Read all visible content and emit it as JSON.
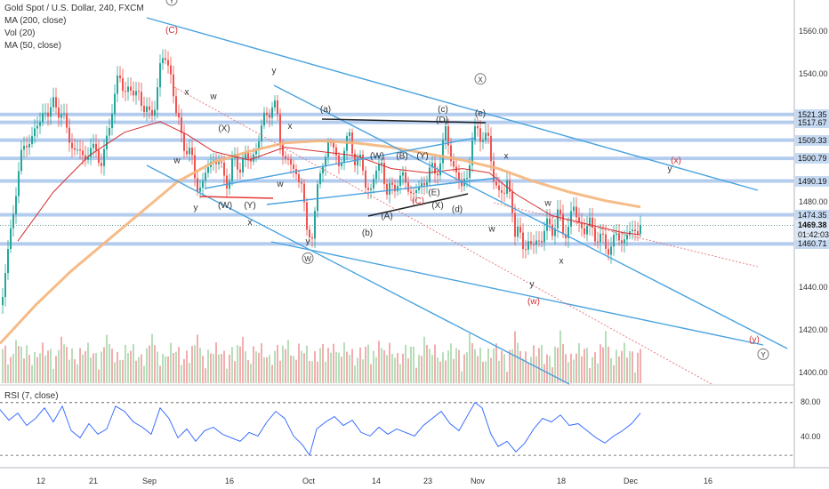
{
  "chart_data": {
    "type": "candlestick",
    "title": "Gold Spot / U.S. Dollar, 240, FXCM",
    "legend": [
      "MA (200, close)",
      "Vol (20)",
      "MA (50, close)"
    ],
    "ylim": [
      1395,
      1575
    ],
    "yticks": [
      "1560.00",
      "1540.00",
      "1520.00",
      "1500.00",
      "1480.00",
      "1460.00",
      "1440.00",
      "1420.00",
      "1400.00"
    ],
    "xticks": [
      "12",
      "21",
      "Sep",
      "16",
      "Oct",
      "14",
      "23",
      "Nov",
      "18",
      "Dec",
      "16"
    ],
    "price_levels": [
      {
        "label": "1521.35",
        "value": 1521.35
      },
      {
        "label": "1517.67",
        "value": 1517.67
      },
      {
        "label": "1509.33",
        "value": 1509.33
      },
      {
        "label": "1500.79",
        "value": 1500.79
      },
      {
        "label": "1490.19",
        "value": 1490.19
      },
      {
        "label": "1474.35",
        "value": 1474.35
      },
      {
        "label": "1460.71",
        "value": 1460.71
      }
    ],
    "current_price": {
      "label": "1469.38",
      "value": 1469.38
    },
    "countdown": {
      "label": "01:42:03",
      "value": 1464.9
    },
    "price_path": [
      [
        1,
        1432
      ],
      [
        6,
        1450
      ],
      [
        12,
        1470
      ],
      [
        18,
        1490
      ],
      [
        24,
        1502
      ],
      [
        30,
        1512
      ],
      [
        36,
        1508
      ],
      [
        42,
        1518
      ],
      [
        48,
        1524
      ],
      [
        54,
        1519
      ],
      [
        60,
        1530
      ],
      [
        66,
        1522
      ],
      [
        72,
        1516
      ],
      [
        78,
        1512
      ],
      [
        84,
        1500
      ],
      [
        90,
        1506
      ],
      [
        96,
        1500
      ],
      [
        102,
        1506
      ],
      [
        108,
        1503
      ],
      [
        114,
        1500
      ],
      [
        120,
        1508
      ],
      [
        126,
        1530
      ],
      [
        132,
        1538
      ],
      [
        138,
        1532
      ],
      [
        144,
        1536
      ],
      [
        150,
        1528
      ],
      [
        156,
        1532
      ],
      [
        162,
        1524
      ],
      [
        168,
        1518
      ],
      [
        174,
        1530
      ],
      [
        180,
        1545
      ],
      [
        186,
        1548
      ],
      [
        192,
        1540
      ],
      [
        196,
        1522
      ],
      [
        202,
        1514
      ],
      [
        208,
        1506
      ],
      [
        214,
        1500
      ],
      [
        220,
        1490
      ],
      [
        226,
        1486
      ],
      [
        232,
        1496
      ],
      [
        238,
        1502
      ],
      [
        244,
        1498
      ],
      [
        250,
        1494
      ],
      [
        256,
        1490
      ],
      [
        262,
        1500
      ],
      [
        268,
        1497
      ],
      [
        274,
        1502
      ],
      [
        280,
        1498
      ],
      [
        286,
        1506
      ],
      [
        292,
        1512
      ],
      [
        298,
        1522
      ],
      [
        304,
        1526
      ],
      [
        310,
        1522
      ],
      [
        314,
        1510
      ],
      [
        320,
        1500
      ],
      [
        326,
        1497
      ],
      [
        332,
        1494
      ],
      [
        338,
        1490
      ],
      [
        344,
        1464
      ],
      [
        350,
        1468
      ],
      [
        356,
        1484
      ],
      [
        362,
        1500
      ],
      [
        368,
        1508
      ],
      [
        374,
        1505
      ],
      [
        380,
        1498
      ],
      [
        386,
        1505
      ],
      [
        392,
        1510
      ],
      [
        398,
        1502
      ],
      [
        404,
        1498
      ],
      [
        410,
        1490
      ],
      [
        416,
        1486
      ],
      [
        422,
        1494
      ],
      [
        428,
        1500
      ],
      [
        434,
        1484
      ],
      [
        440,
        1486
      ],
      [
        446,
        1492
      ],
      [
        452,
        1490
      ],
      [
        458,
        1488
      ],
      [
        464,
        1484
      ],
      [
        470,
        1486
      ],
      [
        476,
        1490
      ],
      [
        482,
        1496
      ],
      [
        488,
        1492
      ],
      [
        494,
        1502
      ],
      [
        500,
        1512
      ],
      [
        506,
        1502
      ],
      [
        512,
        1494
      ],
      [
        518,
        1486
      ],
      [
        524,
        1494
      ],
      [
        530,
        1508
      ],
      [
        536,
        1514
      ],
      [
        542,
        1512
      ],
      [
        548,
        1508
      ],
      [
        554,
        1492
      ],
      [
        560,
        1486
      ],
      [
        566,
        1482
      ],
      [
        570,
        1492
      ],
      [
        574,
        1484
      ],
      [
        578,
        1462
      ],
      [
        584,
        1466
      ],
      [
        590,
        1460
      ],
      [
        596,
        1458
      ],
      [
        602,
        1464
      ],
      [
        608,
        1462
      ],
      [
        614,
        1470
      ],
      [
        620,
        1468
      ],
      [
        626,
        1474
      ],
      [
        632,
        1466
      ],
      [
        638,
        1470
      ],
      [
        644,
        1476
      ],
      [
        650,
        1472
      ],
      [
        656,
        1466
      ],
      [
        662,
        1470
      ],
      [
        668,
        1466
      ],
      [
        674,
        1462
      ],
      [
        680,
        1460
      ],
      [
        686,
        1460
      ],
      [
        692,
        1464
      ],
      [
        698,
        1462
      ],
      [
        704,
        1466
      ],
      [
        710,
        1464
      ],
      [
        716,
        1470
      ],
      [
        720,
        1472
      ]
    ],
    "ma50": [
      [
        20,
        1462
      ],
      [
        60,
        1485
      ],
      [
        100,
        1502
      ],
      [
        140,
        1513
      ],
      [
        180,
        1518
      ],
      [
        210,
        1512
      ],
      [
        240,
        1504
      ],
      [
        280,
        1500
      ],
      [
        320,
        1506
      ],
      [
        360,
        1504
      ],
      [
        400,
        1502
      ],
      [
        440,
        1496
      ],
      [
        480,
        1494
      ],
      [
        520,
        1496
      ],
      [
        550,
        1494
      ],
      [
        580,
        1484
      ],
      [
        620,
        1474
      ],
      [
        660,
        1470
      ],
      [
        700,
        1466
      ],
      [
        720,
        1465
      ]
    ],
    "ma200": [
      [
        0,
        1414
      ],
      [
        40,
        1432
      ],
      [
        80,
        1448
      ],
      [
        120,
        1462
      ],
      [
        160,
        1476
      ],
      [
        200,
        1490
      ],
      [
        240,
        1499
      ],
      [
        280,
        1504
      ],
      [
        320,
        1508
      ],
      [
        360,
        1509
      ],
      [
        400,
        1508
      ],
      [
        440,
        1506
      ],
      [
        480,
        1503
      ],
      [
        520,
        1500
      ],
      [
        560,
        1496
      ],
      [
        600,
        1490
      ],
      [
        640,
        1485
      ],
      [
        680,
        1481
      ],
      [
        720,
        1478
      ]
    ],
    "rsi": {
      "title": "RSI (7, close)",
      "ylim": [
        10,
        95
      ],
      "ticks": [
        "80.00",
        "40.00"
      ],
      "levels": [
        80,
        20
      ],
      "path": [
        [
          0,
          72
        ],
        [
          10,
          60
        ],
        [
          20,
          68
        ],
        [
          30,
          54
        ],
        [
          40,
          62
        ],
        [
          50,
          74
        ],
        [
          60,
          58
        ],
        [
          70,
          76
        ],
        [
          80,
          48
        ],
        [
          90,
          40
        ],
        [
          100,
          56
        ],
        [
          110,
          44
        ],
        [
          120,
          50
        ],
        [
          130,
          76
        ],
        [
          140,
          70
        ],
        [
          150,
          58
        ],
        [
          160,
          52
        ],
        [
          170,
          44
        ],
        [
          180,
          74
        ],
        [
          190,
          62
        ],
        [
          200,
          40
        ],
        [
          210,
          50
        ],
        [
          220,
          36
        ],
        [
          230,
          48
        ],
        [
          240,
          52
        ],
        [
          250,
          44
        ],
        [
          260,
          40
        ],
        [
          270,
          36
        ],
        [
          280,
          46
        ],
        [
          290,
          42
        ],
        [
          300,
          58
        ],
        [
          310,
          70
        ],
        [
          320,
          62
        ],
        [
          330,
          42
        ],
        [
          340,
          32
        ],
        [
          348,
          20
        ],
        [
          356,
          50
        ],
        [
          366,
          58
        ],
        [
          376,
          64
        ],
        [
          386,
          54
        ],
        [
          396,
          60
        ],
        [
          406,
          46
        ],
        [
          416,
          42
        ],
        [
          426,
          52
        ],
        [
          436,
          44
        ],
        [
          446,
          50
        ],
        [
          456,
          46
        ],
        [
          466,
          42
        ],
        [
          476,
          54
        ],
        [
          486,
          62
        ],
        [
          496,
          70
        ],
        [
          506,
          56
        ],
        [
          516,
          48
        ],
        [
          526,
          66
        ],
        [
          534,
          80
        ],
        [
          542,
          74
        ],
        [
          552,
          44
        ],
        [
          560,
          30
        ],
        [
          570,
          36
        ],
        [
          580,
          24
        ],
        [
          590,
          34
        ],
        [
          600,
          50
        ],
        [
          610,
          62
        ],
        [
          620,
          58
        ],
        [
          630,
          66
        ],
        [
          640,
          54
        ],
        [
          650,
          56
        ],
        [
          660,
          48
        ],
        [
          670,
          40
        ],
        [
          680,
          34
        ],
        [
          690,
          42
        ],
        [
          700,
          48
        ],
        [
          710,
          56
        ],
        [
          720,
          68
        ]
      ]
    },
    "volume_max": 100,
    "wave_labels": [
      {
        "text": "Y",
        "x": 193,
        "y": 1575,
        "circled": true
      },
      {
        "text": "(C)",
        "x": 193,
        "y": 1561
      },
      {
        "text": "x",
        "x": 210,
        "y": 1532
      },
      {
        "text": "w",
        "x": 240,
        "y": 1530
      },
      {
        "text": "y",
        "x": 308,
        "y": 1542
      },
      {
        "text": "x",
        "x": 326,
        "y": 1516
      },
      {
        "text": "(X)",
        "x": 252,
        "y": 1515
      },
      {
        "text": "w",
        "x": 199,
        "y": 1500
      },
      {
        "text": "y",
        "x": 220,
        "y": 1478
      },
      {
        "text": "(W)",
        "x": 253,
        "y": 1479
      },
      {
        "text": "(Y)",
        "x": 281,
        "y": 1479
      },
      {
        "text": "x",
        "x": 281,
        "y": 1471
      },
      {
        "text": "w",
        "x": 315,
        "y": 1489
      },
      {
        "text": "y",
        "x": 346,
        "y": 1462
      },
      {
        "text": "W",
        "x": 346,
        "y": 1454,
        "circled": true
      },
      {
        "text": "(a)",
        "x": 366,
        "y": 1524
      },
      {
        "text": "(W)",
        "x": 424,
        "y": 1502
      },
      {
        "text": "(B)",
        "x": 452,
        "y": 1502
      },
      {
        "text": "(Y)",
        "x": 475,
        "y": 1502
      },
      {
        "text": "(A)",
        "x": 435,
        "y": 1474
      },
      {
        "text": "(C)",
        "x": 470,
        "y": 1481
      },
      {
        "text": "(E)",
        "x": 488,
        "y": 1485
      },
      {
        "text": "(X)",
        "x": 492,
        "y": 1479
      },
      {
        "text": "(b)",
        "x": 413,
        "y": 1466
      },
      {
        "text": "(c)",
        "x": 498,
        "y": 1524
      },
      {
        "text": "(D)",
        "x": 497,
        "y": 1519
      },
      {
        "text": "(d)",
        "x": 514,
        "y": 1477
      },
      {
        "text": "X",
        "x": 540,
        "y": 1538,
        "circled": true
      },
      {
        "text": "(e)",
        "x": 540,
        "y": 1522
      },
      {
        "text": "x",
        "x": 569,
        "y": 1502
      },
      {
        "text": "w",
        "x": 553,
        "y": 1468
      },
      {
        "text": "w",
        "x": 616,
        "y": 1480
      },
      {
        "text": "x",
        "x": 631,
        "y": 1453
      },
      {
        "text": "y",
        "x": 598,
        "y": 1442
      },
      {
        "text": "(w)",
        "x": 600,
        "y": 1434
      },
      {
        "text": "(x)",
        "x": 760,
        "y": 1500
      },
      {
        "text": "y",
        "x": 753,
        "y": 1496
      },
      {
        "text": "(y)",
        "x": 848,
        "y": 1416
      },
      {
        "text": "Y",
        "x": 858,
        "y": 1409,
        "circled": true
      }
    ]
  }
}
